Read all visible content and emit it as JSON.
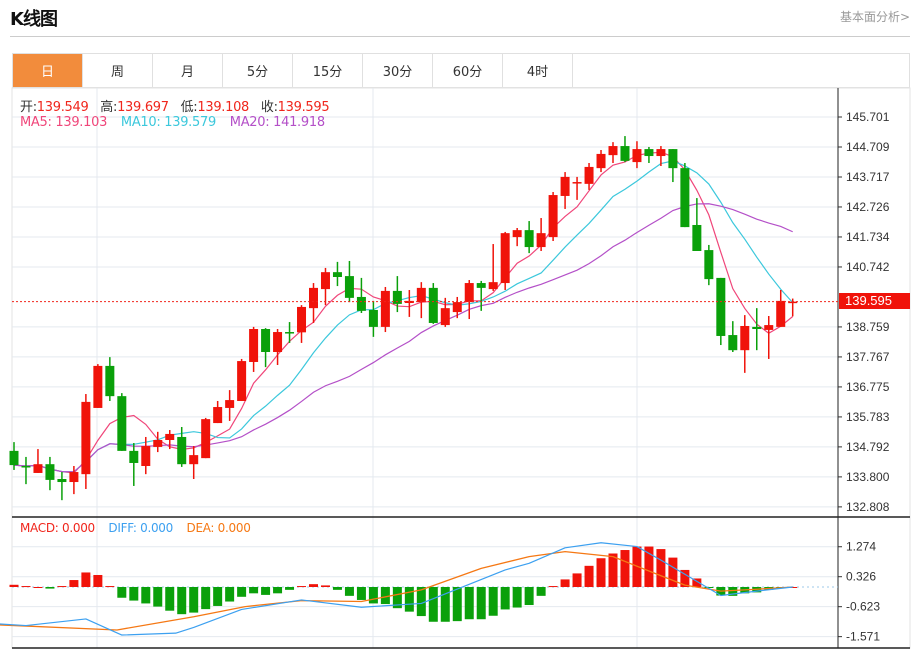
{
  "header": {
    "title": "K线图",
    "link": "基本面分析>"
  },
  "tabs": [
    {
      "label": "日",
      "active": true
    },
    {
      "label": "周"
    },
    {
      "label": "月"
    },
    {
      "label": "5分"
    },
    {
      "label": "15分"
    },
    {
      "label": "30分"
    },
    {
      "label": "60分"
    },
    {
      "label": "4时"
    }
  ],
  "ohlc_legend": {
    "open_label": "开:",
    "open": "139.549",
    "high_label": "高:",
    "high": "139.697",
    "low_label": "低:",
    "low": "139.108",
    "close_label": "收:",
    "close": "139.595"
  },
  "ma_legend": {
    "ma5": "MA5: 139.103",
    "ma10": "MA10: 139.579",
    "ma20": "MA20: 141.918"
  },
  "macd_legend": {
    "macd": "MACD: 0.000",
    "diff": "DIFF: 0.000",
    "dea": "DEA: 0.000"
  },
  "current_price": "139.595",
  "colors": {
    "up": "#f0130a",
    "down": "#0aa00a",
    "ma5": "#f0467a",
    "ma10": "#3cc8dc",
    "ma20": "#b450c8",
    "diff": "#3ca0f0",
    "dea": "#f57814",
    "accent": "#f28c3c"
  },
  "chart_data": [
    {
      "type": "candlestick",
      "title": "K线图",
      "y_ticks": [
        "145.701",
        "144.709",
        "143.717",
        "142.726",
        "141.734",
        "140.742",
        "138.759",
        "137.767",
        "136.775",
        "135.783",
        "134.792",
        "133.800",
        "132.808"
      ],
      "ylim": [
        132.808,
        145.701
      ],
      "ohlc": [
        [
          134.66,
          134.95,
          134.03,
          134.19
        ],
        [
          134.16,
          134.46,
          133.56,
          134.13
        ],
        [
          133.93,
          134.72,
          133.93,
          134.22
        ],
        [
          134.22,
          134.46,
          133.36,
          133.7
        ],
        [
          133.73,
          133.96,
          133.03,
          133.63
        ],
        [
          133.63,
          134.16,
          133.23,
          133.96
        ],
        [
          133.89,
          136.54,
          133.4,
          136.28
        ],
        [
          136.08,
          137.53,
          136.08,
          137.47
        ],
        [
          137.47,
          137.76,
          136.31,
          136.47
        ],
        [
          136.47,
          136.57,
          134.66,
          134.66
        ],
        [
          134.66,
          134.92,
          133.5,
          134.26
        ],
        [
          134.16,
          135.12,
          133.89,
          134.82
        ],
        [
          134.79,
          135.29,
          134.62,
          135.02
        ],
        [
          135.02,
          135.35,
          134.72,
          135.22
        ],
        [
          135.12,
          135.45,
          134.13,
          134.22
        ],
        [
          134.22,
          134.82,
          133.73,
          134.52
        ],
        [
          134.42,
          135.75,
          134.42,
          135.71
        ],
        [
          135.58,
          136.31,
          135.58,
          136.11
        ],
        [
          136.08,
          136.67,
          135.65,
          136.34
        ],
        [
          136.31,
          137.7,
          136.31,
          137.63
        ],
        [
          137.6,
          138.76,
          137.27,
          138.69
        ],
        [
          138.69,
          138.72,
          137.43,
          137.93
        ],
        [
          137.93,
          138.69,
          137.5,
          138.59
        ],
        [
          138.59,
          138.92,
          138.23,
          138.58
        ],
        [
          138.58,
          139.48,
          138.23,
          139.42
        ],
        [
          139.38,
          140.21,
          138.89,
          140.05
        ],
        [
          140.01,
          140.71,
          139.48,
          140.57
        ],
        [
          140.57,
          140.91,
          140.11,
          140.41
        ],
        [
          140.44,
          140.94,
          139.58,
          139.72
        ],
        [
          139.75,
          140.38,
          139.22,
          139.29
        ],
        [
          139.32,
          139.62,
          138.43,
          138.76
        ],
        [
          138.76,
          140.08,
          138.59,
          139.95
        ],
        [
          139.95,
          140.44,
          139.25,
          139.52
        ],
        [
          139.55,
          139.98,
          139.09,
          139.62
        ],
        [
          139.58,
          140.24,
          139.05,
          140.05
        ],
        [
          140.05,
          140.21,
          138.86,
          138.89
        ],
        [
          138.82,
          139.72,
          138.76,
          139.38
        ],
        [
          139.25,
          139.75,
          139.05,
          139.58
        ],
        [
          139.58,
          140.31,
          139.02,
          140.21
        ],
        [
          140.21,
          140.28,
          139.29,
          140.05
        ],
        [
          140.01,
          141.5,
          139.95,
          140.24
        ],
        [
          140.21,
          141.9,
          139.98,
          141.86
        ],
        [
          141.73,
          142.03,
          141.43,
          141.96
        ],
        [
          141.96,
          142.26,
          141.2,
          141.4
        ],
        [
          141.4,
          142.36,
          141.27,
          141.86
        ],
        [
          141.73,
          143.22,
          141.6,
          143.12
        ],
        [
          143.09,
          143.88,
          142.66,
          143.72
        ],
        [
          143.52,
          143.72,
          142.96,
          143.55
        ],
        [
          143.49,
          144.18,
          143.29,
          144.05
        ],
        [
          144.01,
          144.61,
          143.88,
          144.48
        ],
        [
          144.44,
          144.87,
          144.18,
          144.74
        ],
        [
          144.74,
          145.07,
          144.21,
          144.25
        ],
        [
          144.21,
          144.9,
          144.01,
          144.64
        ],
        [
          144.64,
          144.71,
          144.18,
          144.41
        ],
        [
          144.41,
          144.74,
          144.08,
          144.64
        ],
        [
          144.64,
          144.64,
          143.55,
          144.01
        ],
        [
          144.01,
          144.18,
          142.06,
          142.06
        ],
        [
          142.13,
          143.02,
          141.27,
          141.27
        ],
        [
          141.3,
          141.47,
          140.14,
          140.34
        ],
        [
          140.38,
          140.38,
          138.16,
          138.46
        ],
        [
          138.49,
          138.95,
          137.93,
          137.99
        ],
        [
          137.99,
          139.15,
          137.24,
          138.79
        ],
        [
          138.76,
          139.38,
          137.99,
          138.69
        ],
        [
          138.66,
          139.12,
          137.7,
          138.82
        ],
        [
          138.76,
          139.98,
          138.76,
          139.62
        ],
        [
          139.549,
          139.697,
          139.108,
          139.595
        ]
      ],
      "moving_averages": [
        5,
        10,
        20
      ]
    },
    {
      "type": "bar",
      "title": "MACD",
      "y_ticks": [
        "1.274",
        "0.326",
        "-0.623",
        "-1.571"
      ],
      "ylim": [
        -1.571,
        1.274
      ],
      "histogram": [
        0.07,
        0.03,
        0,
        -0.05,
        0.03,
        0.22,
        0.46,
        0.38,
        0.03,
        -0.34,
        -0.43,
        -0.52,
        -0.62,
        -0.75,
        -0.86,
        -0.81,
        -0.7,
        -0.6,
        -0.46,
        -0.31,
        -0.2,
        -0.25,
        -0.2,
        -0.09,
        0.03,
        0.09,
        0.05,
        -0.09,
        -0.28,
        -0.41,
        -0.52,
        -0.54,
        -0.67,
        -0.78,
        -0.92,
        -1.1,
        -1.1,
        -1.08,
        -1.02,
        -1.02,
        -0.91,
        -0.71,
        -0.65,
        -0.57,
        -0.28,
        0.03,
        0.24,
        0.43,
        0.67,
        0.91,
        1.06,
        1.17,
        1.28,
        1.28,
        1.2,
        0.93,
        0.54,
        0.27,
        -0.02,
        -0.27,
        -0.28,
        -0.2,
        -0.17,
        -0.09,
        -0.02,
        0
      ],
      "diff_points": [
        [
          -1.2,
          -1.17
        ],
        [
          1,
          -1.22
        ],
        [
          6,
          -1.01
        ],
        [
          9,
          -1.52
        ],
        [
          13.5,
          -1.46
        ],
        [
          15,
          -1.28
        ],
        [
          19,
          -0.71
        ],
        [
          24,
          -0.41
        ],
        [
          29,
          -0.64
        ],
        [
          34,
          -0.52
        ],
        [
          41,
          0.54
        ],
        [
          43,
          0.75
        ],
        [
          46,
          1.24
        ],
        [
          49,
          1.4
        ],
        [
          52,
          1.28
        ],
        [
          54,
          0.85
        ],
        [
          59,
          -0.27
        ],
        [
          62,
          -0.13
        ],
        [
          65,
          0
        ]
      ],
      "dea_points": [
        [
          -1.2,
          -1.2
        ],
        [
          8.6,
          -1.36
        ],
        [
          15,
          -0.94
        ],
        [
          19.3,
          -0.62
        ],
        [
          24,
          -0.43
        ],
        [
          29,
          -0.46
        ],
        [
          34,
          -0.09
        ],
        [
          39,
          0.59
        ],
        [
          43,
          0.96
        ],
        [
          46,
          1.12
        ],
        [
          50,
          0.96
        ],
        [
          53.5,
          0.43
        ],
        [
          56,
          0.06
        ],
        [
          59,
          -0.13
        ],
        [
          62,
          -0.07
        ],
        [
          65,
          0
        ]
      ]
    }
  ]
}
